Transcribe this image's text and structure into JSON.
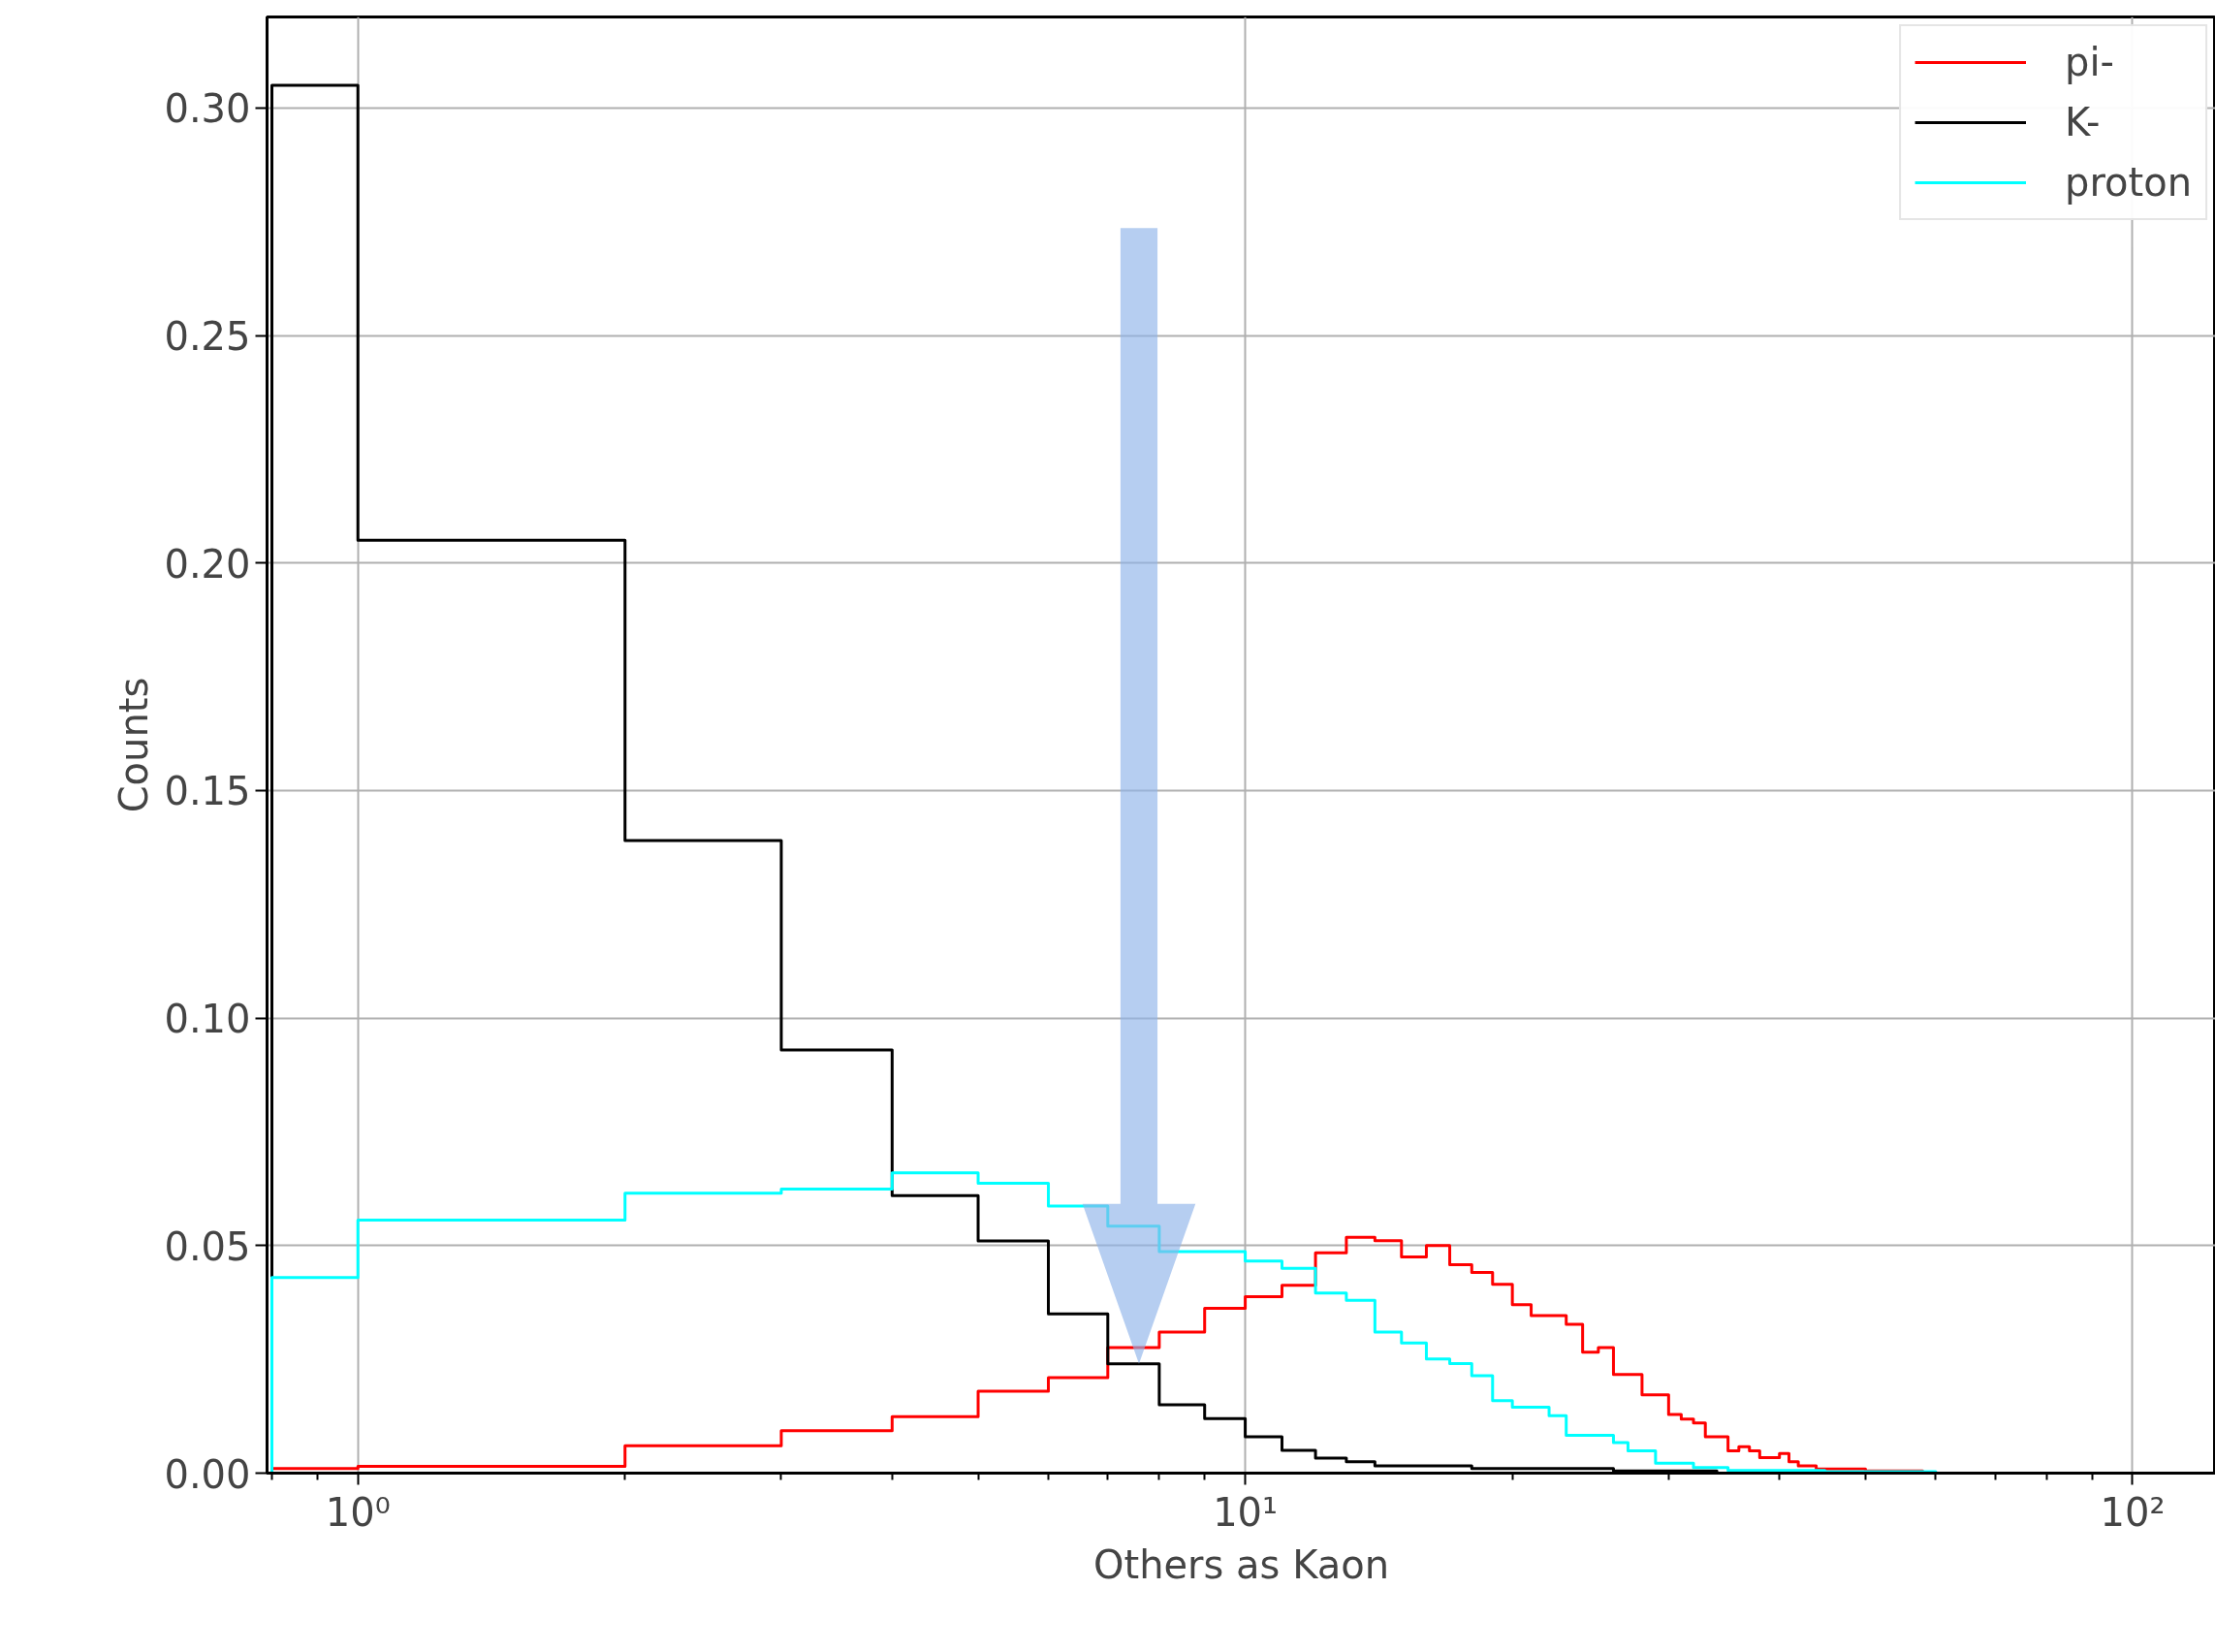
{
  "chart_data": {
    "type": "histogram",
    "xlabel": "Others as Kaon",
    "ylabel": "Counts",
    "log": "x",
    "bins": [
      0.8,
      1,
      2,
      3,
      4,
      5,
      6,
      7,
      8,
      9,
      10,
      11,
      12,
      13,
      14,
      15,
      16,
      17,
      18,
      19,
      20,
      21,
      22,
      23,
      24,
      25,
      26,
      27,
      28,
      29,
      30,
      31,
      32,
      33,
      34,
      35,
      36,
      37,
      38,
      39,
      40,
      41,
      42,
      43,
      44,
      45,
      46,
      47,
      48,
      49,
      50,
      51,
      52,
      53,
      54,
      55,
      56,
      57,
      58,
      59,
      60
    ],
    "series": [
      {
        "name": "pi-",
        "color": "#ff0000",
        "values": [
          0.001,
          0.0015,
          0.006,
          0.0093,
          0.0124,
          0.018,
          0.021,
          0.0276,
          0.031,
          0.0362,
          0.0388,
          0.0413,
          0.0484,
          0.0518,
          0.0511,
          0.0475,
          0.05,
          0.0458,
          0.0441,
          0.0415,
          0.037,
          0.0346,
          0.0346,
          0.0327,
          0.0266,
          0.0276,
          0.0217,
          0.0217,
          0.0172,
          0.0172,
          0.0129,
          0.0119,
          0.011,
          0.008,
          0.008,
          0.0049,
          0.0058,
          0.0049,
          0.0034,
          0.0034,
          0.0043,
          0.0025,
          0.0016,
          0.0016,
          0.0009,
          0.0009,
          0.0009,
          0.0009,
          0.0009,
          0.0009,
          0.0005,
          0.0005,
          0.0005,
          0.0005,
          0.0005,
          0.0005,
          0.0005,
          0.0005,
          0,
          0
        ]
      },
      {
        "name": "K-",
        "color": "#000000",
        "values": [
          0.305,
          0.205,
          0.139,
          0.093,
          0.061,
          0.051,
          0.035,
          0.024,
          0.015,
          0.012,
          0.008,
          0.005,
          0.0033,
          0.0025,
          0.0016,
          0.0016,
          0.0016,
          0.0016,
          0.001,
          0.001,
          0.001,
          0.001,
          0.001,
          0.001,
          0.001,
          0.001,
          0.0005,
          0.0005,
          0.0005,
          0.0005,
          0.0005,
          0.0005,
          0.0005,
          0.0005,
          0,
          0,
          0,
          0,
          0,
          0,
          0,
          0,
          0,
          0,
          0,
          0,
          0,
          0,
          0,
          0,
          0,
          0,
          0,
          0,
          0,
          0,
          0,
          0,
          0,
          0
        ]
      },
      {
        "name": "proton",
        "color": "#00ffff",
        "values": [
          0.043,
          0.0556,
          0.0615,
          0.0624,
          0.066,
          0.0637,
          0.0587,
          0.0543,
          0.0487,
          0.0487,
          0.0466,
          0.045,
          0.0396,
          0.038,
          0.031,
          0.0286,
          0.0251,
          0.0241,
          0.0214,
          0.0159,
          0.0145,
          0.0145,
          0.0126,
          0.0083,
          0.0083,
          0.0083,
          0.0067,
          0.0049,
          0.0049,
          0.0022,
          0.0022,
          0.0022,
          0.0012,
          0.0012,
          0.0012,
          0.0006,
          0.0006,
          0.0006,
          0.0006,
          0.0006,
          0.0006,
          0.0006,
          0.0006,
          0.0006,
          0.0006,
          0.0003,
          0.0003,
          0.0003,
          0.0003,
          0.0003,
          0.0003,
          0.0003,
          0.0003,
          0.0003,
          0.0003,
          0.0003,
          0.0003,
          0.0003,
          0.0003,
          0.0003
        ]
      }
    ],
    "xlim": [
      0.79,
      124
    ],
    "ylim": [
      0,
      0.32
    ],
    "xticks": [
      {
        "value": 0.8,
        "label": null
      },
      {
        "value": 0.9,
        "label": null
      },
      {
        "value": 1,
        "label": "10⁰"
      },
      {
        "value": 2,
        "label": null
      },
      {
        "value": 3,
        "label": null
      },
      {
        "value": 4,
        "label": null
      },
      {
        "value": 5,
        "label": null
      },
      {
        "value": 6,
        "label": null
      },
      {
        "value": 7,
        "label": null
      },
      {
        "value": 8,
        "label": null
      },
      {
        "value": 9,
        "label": null
      },
      {
        "value": 10,
        "label": "10¹"
      },
      {
        "value": 20,
        "label": null
      },
      {
        "value": 30,
        "label": null
      },
      {
        "value": 40,
        "label": null
      },
      {
        "value": 50,
        "label": null
      },
      {
        "value": 60,
        "label": null
      },
      {
        "value": 70,
        "label": null
      },
      {
        "value": 80,
        "label": null
      },
      {
        "value": 90,
        "label": null
      },
      {
        "value": 100,
        "label": "10²"
      }
    ],
    "yticks": [
      {
        "value": 0,
        "label": "0.00"
      },
      {
        "value": 0.05,
        "label": "0.05"
      },
      {
        "value": 0.1,
        "label": "0.10"
      },
      {
        "value": 0.15,
        "label": "0.15"
      },
      {
        "value": 0.2,
        "label": "0.20"
      },
      {
        "value": 0.25,
        "label": "0.25"
      },
      {
        "value": 0.3,
        "label": "0.30"
      }
    ],
    "grid": true,
    "legend": "top right"
  }
}
